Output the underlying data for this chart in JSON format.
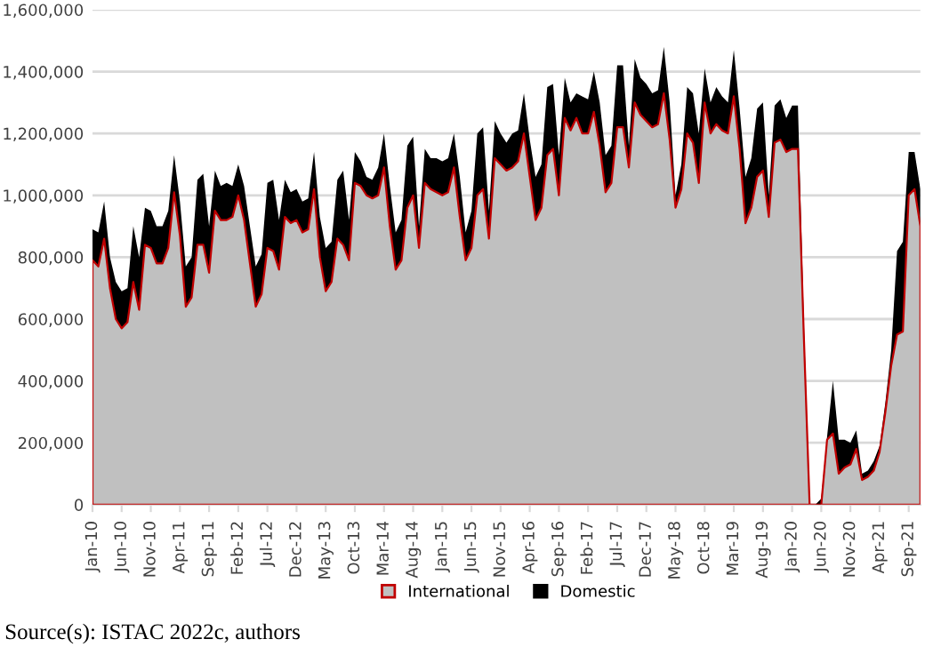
{
  "chart_data": {
    "type": "area",
    "stacked": true,
    "categories": [
      "Jan-10",
      null,
      null,
      null,
      null,
      "Jun-10",
      null,
      null,
      null,
      null,
      "Nov-10",
      null,
      null,
      null,
      null,
      "Apr-11",
      null,
      null,
      null,
      null,
      "Sep-11",
      null,
      null,
      null,
      null,
      "Feb-12",
      null,
      null,
      null,
      null,
      "Jul-12",
      null,
      null,
      null,
      null,
      "Dec-12",
      null,
      null,
      null,
      null,
      "May-13",
      null,
      null,
      null,
      null,
      "Oct-13",
      null,
      null,
      null,
      null,
      "Mar-14",
      null,
      null,
      null,
      null,
      "Aug-14",
      null,
      null,
      null,
      null,
      "Jan-15",
      null,
      null,
      null,
      null,
      "Jun-15",
      null,
      null,
      null,
      null,
      "Nov-15",
      null,
      null,
      null,
      null,
      "Apr-16",
      null,
      null,
      null,
      null,
      "Sep-16",
      null,
      null,
      null,
      null,
      "Feb-17",
      null,
      null,
      null,
      null,
      "Jul-17",
      null,
      null,
      null,
      null,
      "Dec-17",
      null,
      null,
      null,
      null,
      "May-18",
      null,
      null,
      null,
      null,
      "Oct-18",
      null,
      null,
      null,
      null,
      "Mar-19",
      null,
      null,
      null,
      null,
      "Aug-19",
      null,
      null,
      null,
      null,
      "Jan-20",
      null,
      null,
      null,
      null,
      "Jun-20",
      null,
      null,
      null,
      null,
      "Nov-20",
      null,
      null,
      null,
      null,
      "Apr-21",
      null,
      null,
      null,
      null,
      "Sep-21",
      null,
      null
    ],
    "series": [
      {
        "name": "International",
        "color": "#c0c0c0",
        "values": [
          790000,
          770000,
          860000,
          700000,
          600000,
          570000,
          590000,
          720000,
          630000,
          840000,
          830000,
          780000,
          780000,
          830000,
          1010000,
          870000,
          640000,
          670000,
          840000,
          840000,
          750000,
          950000,
          920000,
          920000,
          930000,
          1000000,
          920000,
          780000,
          640000,
          680000,
          830000,
          820000,
          760000,
          930000,
          910000,
          920000,
          880000,
          890000,
          1020000,
          800000,
          690000,
          720000,
          860000,
          840000,
          790000,
          1040000,
          1030000,
          1000000,
          990000,
          1000000,
          1090000,
          900000,
          760000,
          790000,
          960000,
          1000000,
          830000,
          1040000,
          1020000,
          1010000,
          1000000,
          1010000,
          1090000,
          930000,
          790000,
          830000,
          1000000,
          1020000,
          860000,
          1120000,
          1100000,
          1080000,
          1090000,
          1110000,
          1200000,
          1060000,
          920000,
          960000,
          1130000,
          1150000,
          1000000,
          1250000,
          1210000,
          1250000,
          1200000,
          1200000,
          1270000,
          1160000,
          1010000,
          1040000,
          1220000,
          1220000,
          1090000,
          1300000,
          1260000,
          1240000,
          1220000,
          1230000,
          1330000,
          1180000,
          960000,
          1020000,
          1200000,
          1170000,
          1040000,
          1300000,
          1200000,
          1230000,
          1210000,
          1200000,
          1320000,
          1150000,
          910000,
          960000,
          1060000,
          1080000,
          930000,
          1170000,
          1180000,
          1140000,
          1150000,
          1150000,
          550000,
          0,
          0,
          0,
          210000,
          230000,
          100000,
          120000,
          130000,
          180000,
          80000,
          90000,
          110000,
          170000,
          300000,
          450000,
          550000,
          560000,
          1000000,
          1020000,
          900000
        ]
      },
      {
        "name": "Domestic",
        "color": "#000000",
        "values": [
          100000,
          110000,
          120000,
          100000,
          120000,
          120000,
          110000,
          180000,
          170000,
          120000,
          120000,
          120000,
          120000,
          120000,
          120000,
          110000,
          130000,
          130000,
          210000,
          230000,
          150000,
          130000,
          110000,
          120000,
          100000,
          100000,
          110000,
          120000,
          130000,
          130000,
          210000,
          230000,
          160000,
          120000,
          100000,
          100000,
          100000,
          100000,
          120000,
          130000,
          140000,
          130000,
          190000,
          240000,
          130000,
          100000,
          80000,
          60000,
          60000,
          90000,
          110000,
          130000,
          120000,
          130000,
          200000,
          190000,
          70000,
          110000,
          100000,
          110000,
          110000,
          110000,
          110000,
          130000,
          90000,
          120000,
          200000,
          200000,
          90000,
          120000,
          100000,
          90000,
          110000,
          100000,
          130000,
          120000,
          140000,
          140000,
          220000,
          210000,
          130000,
          130000,
          90000,
          80000,
          120000,
          110000,
          130000,
          140000,
          120000,
          120000,
          200000,
          200000,
          70000,
          140000,
          120000,
          120000,
          110000,
          110000,
          150000,
          120000,
          40000,
          80000,
          150000,
          160000,
          160000,
          110000,
          100000,
          120000,
          110000,
          100000,
          150000,
          130000,
          150000,
          160000,
          220000,
          220000,
          70000,
          120000,
          130000,
          110000,
          140000,
          140000,
          50000,
          0,
          0,
          20000,
          10000,
          170000,
          110000,
          90000,
          70000,
          60000,
          20000,
          20000,
          30000,
          20000,
          30000,
          50000,
          270000,
          290000,
          140000,
          120000,
          120000
        ]
      }
    ],
    "ylim": [
      0,
      1600000
    ],
    "yticks": [
      {
        "value": 0,
        "label": "0"
      },
      {
        "value": 200000,
        "label": "200,000"
      },
      {
        "value": 400000,
        "label": "400,000"
      },
      {
        "value": 600000,
        "label": "600,000"
      },
      {
        "value": 800000,
        "label": "800,000"
      },
      {
        "value": 1000000,
        "label": "1,000,000"
      },
      {
        "value": 1200000,
        "label": "1,200,000"
      },
      {
        "value": 1400000,
        "label": "1,400,000"
      },
      {
        "value": 1600000,
        "label": "1,600,000"
      }
    ],
    "grid": "y",
    "legend": "bottom",
    "annotations": [
      "Source(s): ISTAC 2022c, authors"
    ]
  }
}
